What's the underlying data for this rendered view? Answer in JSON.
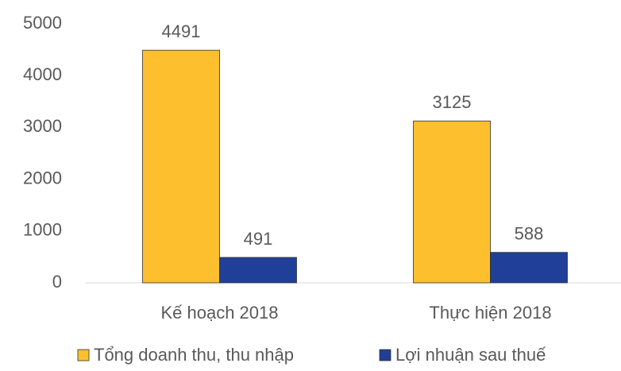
{
  "chart_data": {
    "type": "bar",
    "categories": [
      "Kế hoạch 2018",
      "Thực hiện 2018"
    ],
    "series": [
      {
        "name": "Tổng doanh thu, thu nhập",
        "color": "#fdbf2d",
        "values": [
          4491,
          3125
        ]
      },
      {
        "name": "Lợi nhuận sau thuế",
        "color": "#1f3f99",
        "values": [
          491,
          588
        ]
      }
    ],
    "ylim": [
      0,
      5000
    ],
    "yticks": [
      0,
      1000,
      2000,
      3000,
      4000,
      5000
    ],
    "grid": false
  }
}
